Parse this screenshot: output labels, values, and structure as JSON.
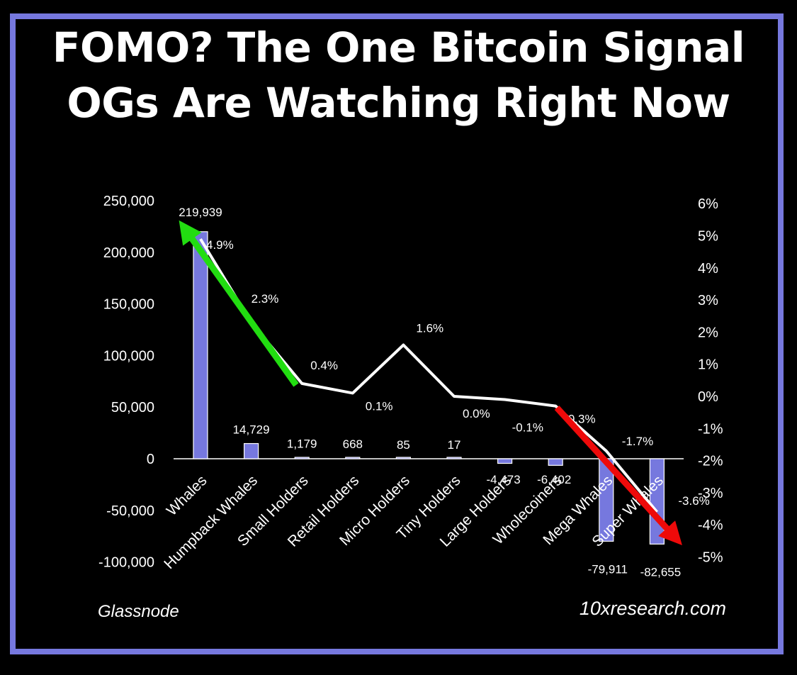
{
  "title": "FOMO? The One Bitcoin Signal OGs Are Watching Right Now",
  "source_left": "Glassnode",
  "source_right": "10xresearch.com",
  "colors": {
    "frame": "#7678de",
    "bar": "#7678de",
    "line": "#ffffff",
    "up_arrow": "#22dd11",
    "down_arrow": "#ee0a0a"
  },
  "chart_data": {
    "type": "bar",
    "categories": [
      "Whales",
      "Humpback Whales",
      "Small Holders",
      "Retail Holders",
      "Micro Holders",
      "Tiny Holders",
      "Large Holders",
      "Wholecoiners",
      "Mega Whales",
      "Super Whales"
    ],
    "series": [
      {
        "type": "bar",
        "axis": "left",
        "values": [
          219939,
          14729,
          1179,
          668,
          85,
          17,
          -4473,
          -6402,
          -79911,
          -82655
        ],
        "labels": [
          "219,939",
          "14,729",
          "1,179",
          "668",
          "85",
          "17",
          "-4,473",
          "-6,402",
          "-79,911",
          "-82,655"
        ]
      },
      {
        "type": "line",
        "axis": "right",
        "values": [
          4.9,
          2.3,
          0.4,
          0.1,
          1.6,
          0.0,
          -0.1,
          -0.3,
          -1.7,
          -3.6
        ],
        "labels": [
          "4.9%",
          "2.3%",
          "0.4%",
          "0.1%",
          "1.6%",
          "0.0%",
          "-0.1%",
          "-0.3%",
          "-1.7%",
          "-3.6%"
        ]
      }
    ],
    "y_left": {
      "ylim": [
        -100000,
        250000
      ],
      "ticks": [
        250000,
        200000,
        150000,
        100000,
        50000,
        0,
        -50000,
        -100000
      ],
      "tick_labels": [
        "250,000",
        "200,000",
        "150,000",
        "100,000",
        "50,000",
        "0",
        "-50,000",
        "-100,000"
      ]
    },
    "y_right": {
      "ylim": [
        -5,
        6
      ],
      "ticks": [
        6,
        5,
        4,
        3,
        2,
        1,
        0,
        -1,
        -2,
        -3,
        -4,
        -5
      ],
      "tick_labels": [
        "6%",
        "5%",
        "4%",
        "3%",
        "2%",
        "1%",
        "0%",
        "-1%",
        "-2%",
        "-3%",
        "-4%",
        "-5%"
      ]
    },
    "annotations": [
      {
        "type": "arrow",
        "color": "green",
        "from_category": "Small Holders",
        "to_category": "Whales",
        "direction": "up"
      },
      {
        "type": "arrow",
        "color": "red",
        "from_category": "Wholecoiners",
        "to_category": "Super Whales",
        "direction": "down"
      }
    ],
    "grid": false,
    "legend": "none"
  }
}
